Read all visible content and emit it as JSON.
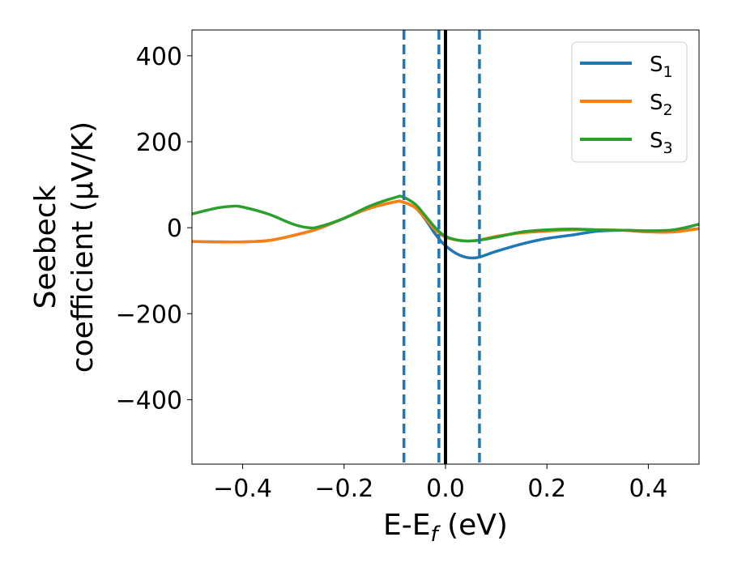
{
  "chart_data": {
    "type": "line",
    "xlabel": "E-E",
    "xlabel_sub": "f",
    "xlabel_unit": " (eV)",
    "ylabel_line1": "Seebeck",
    "ylabel_line2": "coefficient  (μV/K)",
    "xlim": [
      -0.5,
      0.5
    ],
    "ylim": [
      -550,
      460
    ],
    "xticks": [
      -0.4,
      -0.2,
      0.0,
      0.2,
      0.4
    ],
    "xtick_labels": [
      "−0.4",
      "−0.2",
      "0.0",
      "0.2",
      "0.4"
    ],
    "yticks": [
      400,
      200,
      0,
      -200,
      -400
    ],
    "ytick_labels": [
      "400",
      "200",
      "0",
      "−200",
      "−400"
    ],
    "grid": false,
    "legend_position": "top-right",
    "reference_lines": {
      "solid": {
        "x": 0.0,
        "color": "#000000"
      },
      "dashed": {
        "x": [
          -0.082,
          -0.013,
          0.067
        ],
        "color": "#1f77b4"
      }
    },
    "series": [
      {
        "name": "S",
        "subscript": "1",
        "color": "#1f77b4",
        "x": [
          -0.5,
          -0.45,
          -0.4,
          -0.35,
          -0.3,
          -0.25,
          -0.2,
          -0.15,
          -0.1,
          -0.085,
          -0.06,
          -0.04,
          -0.02,
          0.0,
          0.03,
          0.06,
          0.1,
          0.15,
          0.2,
          0.25,
          0.3,
          0.35,
          0.4,
          0.45,
          0.5
        ],
        "y": [
          -32,
          -33,
          -33,
          -30,
          -18,
          -2,
          22,
          45,
          60,
          60,
          47,
          20,
          -15,
          -42,
          -65,
          -70,
          -55,
          -38,
          -25,
          -17,
          -8,
          -6,
          -8,
          -8,
          -2
        ]
      },
      {
        "name": "S",
        "subscript": "2",
        "color": "#ff7f0e",
        "x": [
          -0.5,
          -0.45,
          -0.4,
          -0.35,
          -0.3,
          -0.25,
          -0.2,
          -0.15,
          -0.1,
          -0.085,
          -0.06,
          -0.04,
          -0.02,
          0.0,
          0.03,
          0.06,
          0.1,
          0.15,
          0.2,
          0.25,
          0.3,
          0.35,
          0.4,
          0.45,
          0.5
        ],
        "y": [
          -32,
          -33,
          -33,
          -30,
          -18,
          -2,
          22,
          45,
          60,
          60,
          47,
          22,
          -5,
          -22,
          -30,
          -30,
          -20,
          -12,
          -8,
          -5,
          -5,
          -6,
          -10,
          -10,
          -2
        ]
      },
      {
        "name": "S",
        "subscript": "3",
        "color": "#2ca02c",
        "x": [
          -0.5,
          -0.45,
          -0.42,
          -0.4,
          -0.35,
          -0.3,
          -0.27,
          -0.25,
          -0.2,
          -0.15,
          -0.1,
          -0.085,
          -0.06,
          -0.04,
          -0.02,
          0.0,
          0.03,
          0.06,
          0.1,
          0.15,
          0.2,
          0.25,
          0.3,
          0.35,
          0.4,
          0.45,
          0.5
        ],
        "y": [
          32,
          46,
          50,
          48,
          32,
          8,
          0,
          2,
          22,
          50,
          70,
          72,
          55,
          28,
          0,
          -20,
          -30,
          -30,
          -22,
          -10,
          -5,
          -3,
          -5,
          -6,
          -7,
          -5,
          8
        ]
      }
    ]
  }
}
